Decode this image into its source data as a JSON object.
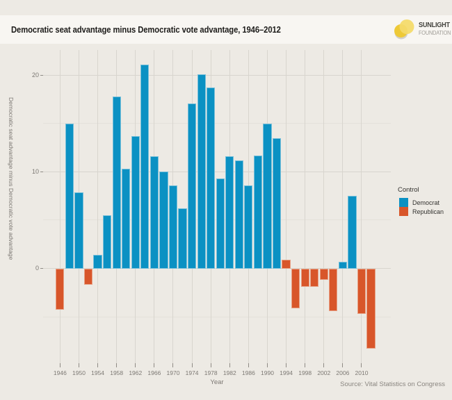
{
  "header": {
    "logo_line1": "SUNLIGHT",
    "logo_line2": "FOUNDATION"
  },
  "colors": {
    "democrat": "#0b91c3",
    "republican": "#d8562a",
    "background": "#edeae4",
    "title_band": "#f8f6f2",
    "grid_major": "#d8d5ce",
    "grid_minor": "#e4e1da",
    "axis_text": "#7c7873"
  },
  "legend": {
    "title": "Control",
    "items": [
      {
        "label": "Democrat",
        "color_key": "democrat"
      },
      {
        "label": "Republican",
        "color_key": "republican"
      }
    ]
  },
  "source": "Source: Vital Statistics on Congress",
  "chart_data": {
    "type": "bar",
    "title": "Democratic seat advantage minus Democratic vote advantage, 1946–2012",
    "xlabel": "Year",
    "ylabel": "Democratic seat advantage minus Democratic vote advantage",
    "legend_position": "right",
    "grid": "horizontal major+minor, vertical major",
    "xlim": [
      1942.4,
      2016.2
    ],
    "ylim": [
      -9.8,
      22.6
    ],
    "y_ticks": [
      0,
      10,
      20
    ],
    "y_minor_ticks": [
      -5,
      5,
      15
    ],
    "x_ticks": [
      1946,
      1950,
      1954,
      1958,
      1962,
      1966,
      1970,
      1974,
      1978,
      1982,
      1986,
      1990,
      1994,
      1998,
      2002,
      2006,
      2010
    ],
    "bar_width_years": 1.8,
    "points": [
      {
        "year": 1946,
        "value": -4.3,
        "control": "Republican"
      },
      {
        "year": 1948,
        "value": 15.0,
        "control": "Democrat"
      },
      {
        "year": 1950,
        "value": 7.9,
        "control": "Democrat"
      },
      {
        "year": 1952,
        "value": -1.7,
        "control": "Republican"
      },
      {
        "year": 1954,
        "value": 1.4,
        "control": "Democrat"
      },
      {
        "year": 1956,
        "value": 5.5,
        "control": "Democrat"
      },
      {
        "year": 1958,
        "value": 17.8,
        "control": "Democrat"
      },
      {
        "year": 1960,
        "value": 10.3,
        "control": "Democrat"
      },
      {
        "year": 1962,
        "value": 13.7,
        "control": "Democrat"
      },
      {
        "year": 1964,
        "value": 21.1,
        "control": "Democrat"
      },
      {
        "year": 1966,
        "value": 11.6,
        "control": "Democrat"
      },
      {
        "year": 1968,
        "value": 10.0,
        "control": "Democrat"
      },
      {
        "year": 1970,
        "value": 8.6,
        "control": "Democrat"
      },
      {
        "year": 1972,
        "value": 6.2,
        "control": "Democrat"
      },
      {
        "year": 1974,
        "value": 17.1,
        "control": "Democrat"
      },
      {
        "year": 1976,
        "value": 20.1,
        "control": "Democrat"
      },
      {
        "year": 1978,
        "value": 18.7,
        "control": "Democrat"
      },
      {
        "year": 1980,
        "value": 9.3,
        "control": "Democrat"
      },
      {
        "year": 1982,
        "value": 11.6,
        "control": "Democrat"
      },
      {
        "year": 1984,
        "value": 11.2,
        "control": "Democrat"
      },
      {
        "year": 1986,
        "value": 8.6,
        "control": "Democrat"
      },
      {
        "year": 1988,
        "value": 11.7,
        "control": "Democrat"
      },
      {
        "year": 1990,
        "value": 15.0,
        "control": "Democrat"
      },
      {
        "year": 1992,
        "value": 13.5,
        "control": "Democrat"
      },
      {
        "year": 1994,
        "value": 0.9,
        "control": "Republican"
      },
      {
        "year": 1996,
        "value": -4.1,
        "control": "Republican"
      },
      {
        "year": 1998,
        "value": -1.9,
        "control": "Republican"
      },
      {
        "year": 2000,
        "value": -1.9,
        "control": "Republican"
      },
      {
        "year": 2002,
        "value": -1.2,
        "control": "Republican"
      },
      {
        "year": 2004,
        "value": -4.4,
        "control": "Republican"
      },
      {
        "year": 2006,
        "value": 0.7,
        "control": "Democrat"
      },
      {
        "year": 2008,
        "value": 7.5,
        "control": "Democrat"
      },
      {
        "year": 2010,
        "value": -4.7,
        "control": "Republican"
      },
      {
        "year": 2012,
        "value": -8.3,
        "control": "Republican"
      }
    ]
  }
}
